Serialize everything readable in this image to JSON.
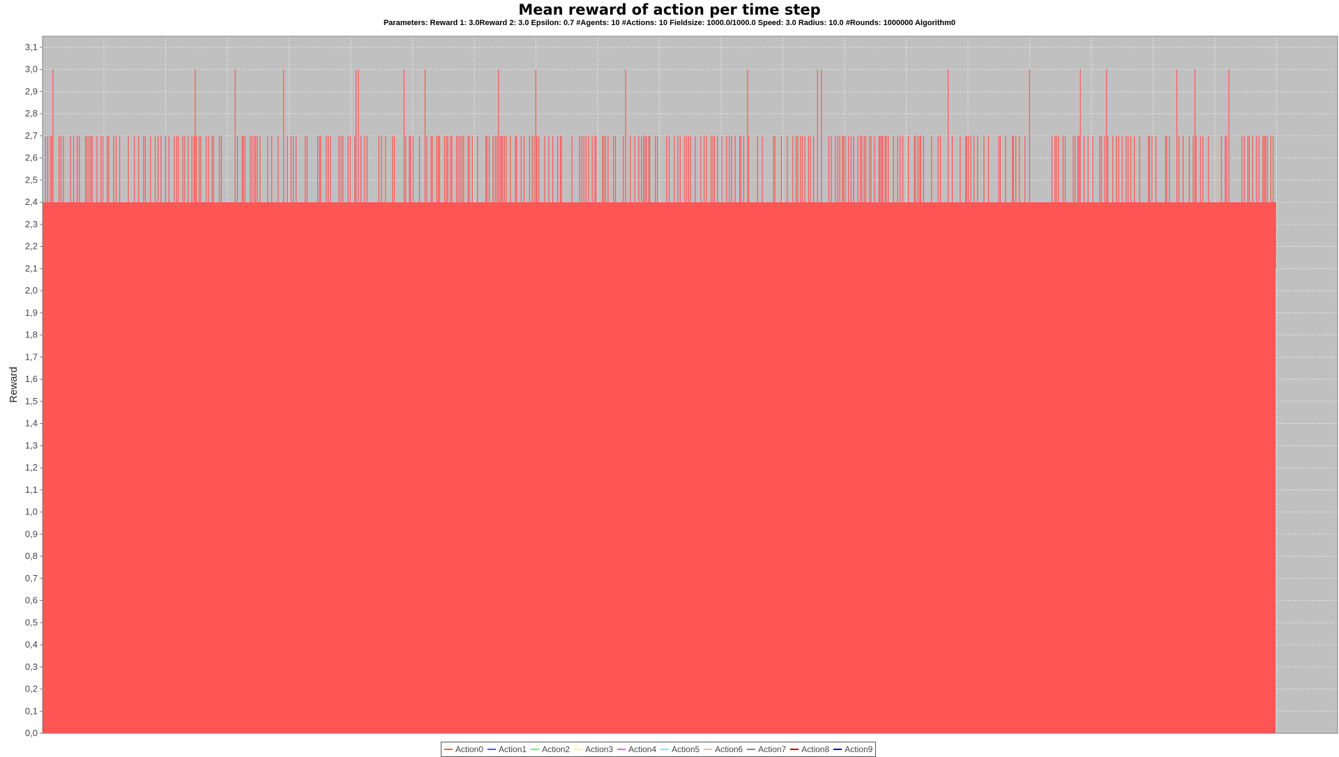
{
  "chart_data": {
    "type": "area",
    "title": "Mean reward of action per time step",
    "subtitle": "Parameters: Reward 1: 3.0Reward 2: 3.0 Epsilon: 0.7 #Agents: 10 #Actions: 10 Fieldsize: 1000.0/1000.0 Speed: 3.0 Radius: 10.0 #Rounds: 1000000 Algorithm0",
    "xlabel": "",
    "ylabel": "Reward",
    "ylim": [
      0.0,
      3.15
    ],
    "yticks": [
      "0,0",
      "0,1",
      "0,2",
      "0,3",
      "0,4",
      "0,5",
      "0,6",
      "0,7",
      "0,8",
      "0,9",
      "1,0",
      "1,1",
      "1,2",
      "1,3",
      "1,4",
      "1,5",
      "1,6",
      "1,7",
      "1,8",
      "1,9",
      "2,0",
      "2,1",
      "2,2",
      "2,3",
      "2,4",
      "2,5",
      "2,6",
      "2,7",
      "2,8",
      "2,9",
      "3,0",
      "3,1"
    ],
    "grid": true,
    "legend_position": "bottom-center",
    "background": "#c0c0c0",
    "series": [
      {
        "name": "Action0",
        "color": "#ff5555",
        "baseline": 2.4,
        "spike_levels": [
          2.7,
          3.0
        ],
        "fill_to": 2.1
      },
      {
        "name": "Action1",
        "color": "#5555ff"
      },
      {
        "name": "Action2",
        "color": "#55ff55"
      },
      {
        "name": "Action3",
        "color": "#ffff55"
      },
      {
        "name": "Action4",
        "color": "#ff55ff"
      },
      {
        "name": "Action5",
        "color": "#55ffff"
      },
      {
        "name": "Action6",
        "color": "#ffafaf"
      },
      {
        "name": "Action7",
        "color": "#808080"
      },
      {
        "name": "Action8",
        "color": "#c00000"
      },
      {
        "name": "Action9",
        "color": "#0000c0"
      }
    ]
  }
}
